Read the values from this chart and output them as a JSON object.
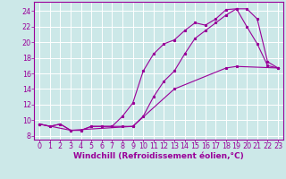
{
  "background_color": "#cce8e8",
  "grid_color": "#ffffff",
  "line_color": "#990099",
  "marker_color": "#990099",
  "xlabel": "Windchill (Refroidissement éolien,°C)",
  "xlabel_fontsize": 6.5,
  "ytick_labels": [
    "8",
    "10",
    "12",
    "14",
    "16",
    "18",
    "20",
    "22",
    "24"
  ],
  "ytick_values": [
    8,
    10,
    12,
    14,
    16,
    18,
    20,
    22,
    24
  ],
  "xtick_values": [
    0,
    1,
    2,
    3,
    4,
    5,
    6,
    7,
    8,
    9,
    10,
    11,
    12,
    13,
    14,
    15,
    16,
    17,
    18,
    19,
    20,
    21,
    22,
    23
  ],
  "ylim": [
    7.5,
    25.2
  ],
  "xlim": [
    -0.5,
    23.5
  ],
  "line1_x": [
    0,
    1,
    2,
    3,
    4,
    5,
    6,
    7,
    8,
    9,
    10,
    11,
    12,
    13,
    14,
    15,
    16,
    17,
    18,
    19,
    20,
    21,
    22,
    23
  ],
  "line1_y": [
    9.5,
    9.2,
    9.5,
    8.7,
    8.7,
    9.2,
    9.2,
    9.2,
    10.5,
    12.2,
    16.3,
    18.5,
    19.8,
    20.3,
    21.5,
    22.5,
    22.2,
    23.0,
    24.2,
    24.3,
    22.0,
    19.8,
    17.0,
    16.7
  ],
  "line2_x": [
    0,
    1,
    2,
    3,
    4,
    5,
    6,
    7,
    8,
    9,
    10,
    11,
    12,
    13,
    14,
    15,
    16,
    17,
    18,
    19,
    20,
    21,
    22,
    23
  ],
  "line2_y": [
    9.5,
    9.2,
    9.5,
    8.7,
    8.7,
    9.2,
    9.2,
    9.2,
    9.2,
    9.2,
    10.5,
    13.0,
    15.0,
    16.3,
    18.5,
    20.5,
    21.5,
    22.5,
    23.5,
    24.3,
    24.3,
    23.0,
    17.5,
    16.7
  ],
  "line3_x": [
    0,
    3,
    9,
    13,
    18,
    19,
    23
  ],
  "line3_y": [
    9.5,
    8.7,
    9.2,
    14.0,
    16.7,
    16.9,
    16.7
  ],
  "tick_fontsize": 5.8,
  "tick_color": "#990099",
  "spine_color": "#990099"
}
